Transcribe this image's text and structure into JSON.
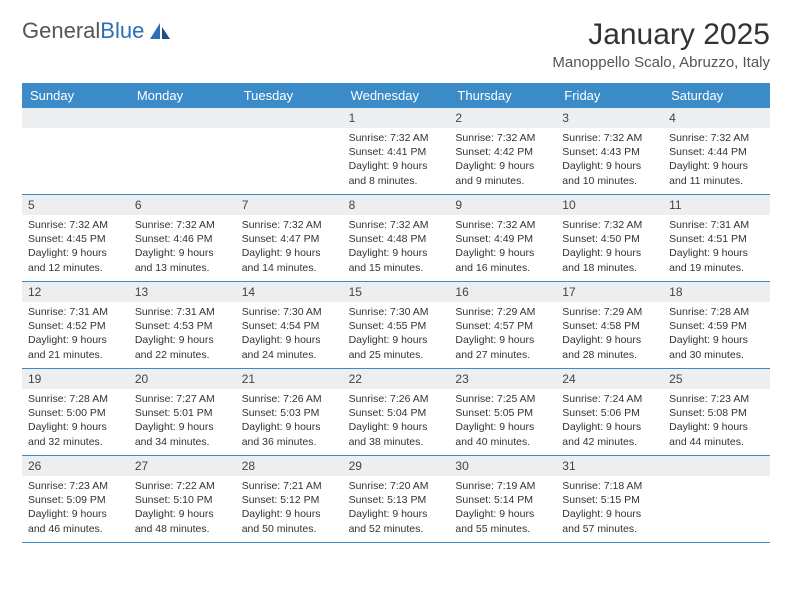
{
  "brand": {
    "part1": "General",
    "part2": "Blue"
  },
  "colors": {
    "header_bg": "#3b8bc9",
    "header_text": "#ffffff",
    "daynum_bg": "#eceef0",
    "border": "#3b8bc9",
    "logo_gray": "#555555",
    "logo_blue": "#2d6fb5"
  },
  "title": "January 2025",
  "location": "Manoppello Scalo, Abruzzo, Italy",
  "weekdays": [
    "Sunday",
    "Monday",
    "Tuesday",
    "Wednesday",
    "Thursday",
    "Friday",
    "Saturday"
  ],
  "weeks": [
    [
      {
        "n": "",
        "sr": "",
        "ss": "",
        "dl": ""
      },
      {
        "n": "",
        "sr": "",
        "ss": "",
        "dl": ""
      },
      {
        "n": "",
        "sr": "",
        "ss": "",
        "dl": ""
      },
      {
        "n": "1",
        "sr": "Sunrise: 7:32 AM",
        "ss": "Sunset: 4:41 PM",
        "dl": "Daylight: 9 hours and 8 minutes."
      },
      {
        "n": "2",
        "sr": "Sunrise: 7:32 AM",
        "ss": "Sunset: 4:42 PM",
        "dl": "Daylight: 9 hours and 9 minutes."
      },
      {
        "n": "3",
        "sr": "Sunrise: 7:32 AM",
        "ss": "Sunset: 4:43 PM",
        "dl": "Daylight: 9 hours and 10 minutes."
      },
      {
        "n": "4",
        "sr": "Sunrise: 7:32 AM",
        "ss": "Sunset: 4:44 PM",
        "dl": "Daylight: 9 hours and 11 minutes."
      }
    ],
    [
      {
        "n": "5",
        "sr": "Sunrise: 7:32 AM",
        "ss": "Sunset: 4:45 PM",
        "dl": "Daylight: 9 hours and 12 minutes."
      },
      {
        "n": "6",
        "sr": "Sunrise: 7:32 AM",
        "ss": "Sunset: 4:46 PM",
        "dl": "Daylight: 9 hours and 13 minutes."
      },
      {
        "n": "7",
        "sr": "Sunrise: 7:32 AM",
        "ss": "Sunset: 4:47 PM",
        "dl": "Daylight: 9 hours and 14 minutes."
      },
      {
        "n": "8",
        "sr": "Sunrise: 7:32 AM",
        "ss": "Sunset: 4:48 PM",
        "dl": "Daylight: 9 hours and 15 minutes."
      },
      {
        "n": "9",
        "sr": "Sunrise: 7:32 AM",
        "ss": "Sunset: 4:49 PM",
        "dl": "Daylight: 9 hours and 16 minutes."
      },
      {
        "n": "10",
        "sr": "Sunrise: 7:32 AM",
        "ss": "Sunset: 4:50 PM",
        "dl": "Daylight: 9 hours and 18 minutes."
      },
      {
        "n": "11",
        "sr": "Sunrise: 7:31 AM",
        "ss": "Sunset: 4:51 PM",
        "dl": "Daylight: 9 hours and 19 minutes."
      }
    ],
    [
      {
        "n": "12",
        "sr": "Sunrise: 7:31 AM",
        "ss": "Sunset: 4:52 PM",
        "dl": "Daylight: 9 hours and 21 minutes."
      },
      {
        "n": "13",
        "sr": "Sunrise: 7:31 AM",
        "ss": "Sunset: 4:53 PM",
        "dl": "Daylight: 9 hours and 22 minutes."
      },
      {
        "n": "14",
        "sr": "Sunrise: 7:30 AM",
        "ss": "Sunset: 4:54 PM",
        "dl": "Daylight: 9 hours and 24 minutes."
      },
      {
        "n": "15",
        "sr": "Sunrise: 7:30 AM",
        "ss": "Sunset: 4:55 PM",
        "dl": "Daylight: 9 hours and 25 minutes."
      },
      {
        "n": "16",
        "sr": "Sunrise: 7:29 AM",
        "ss": "Sunset: 4:57 PM",
        "dl": "Daylight: 9 hours and 27 minutes."
      },
      {
        "n": "17",
        "sr": "Sunrise: 7:29 AM",
        "ss": "Sunset: 4:58 PM",
        "dl": "Daylight: 9 hours and 28 minutes."
      },
      {
        "n": "18",
        "sr": "Sunrise: 7:28 AM",
        "ss": "Sunset: 4:59 PM",
        "dl": "Daylight: 9 hours and 30 minutes."
      }
    ],
    [
      {
        "n": "19",
        "sr": "Sunrise: 7:28 AM",
        "ss": "Sunset: 5:00 PM",
        "dl": "Daylight: 9 hours and 32 minutes."
      },
      {
        "n": "20",
        "sr": "Sunrise: 7:27 AM",
        "ss": "Sunset: 5:01 PM",
        "dl": "Daylight: 9 hours and 34 minutes."
      },
      {
        "n": "21",
        "sr": "Sunrise: 7:26 AM",
        "ss": "Sunset: 5:03 PM",
        "dl": "Daylight: 9 hours and 36 minutes."
      },
      {
        "n": "22",
        "sr": "Sunrise: 7:26 AM",
        "ss": "Sunset: 5:04 PM",
        "dl": "Daylight: 9 hours and 38 minutes."
      },
      {
        "n": "23",
        "sr": "Sunrise: 7:25 AM",
        "ss": "Sunset: 5:05 PM",
        "dl": "Daylight: 9 hours and 40 minutes."
      },
      {
        "n": "24",
        "sr": "Sunrise: 7:24 AM",
        "ss": "Sunset: 5:06 PM",
        "dl": "Daylight: 9 hours and 42 minutes."
      },
      {
        "n": "25",
        "sr": "Sunrise: 7:23 AM",
        "ss": "Sunset: 5:08 PM",
        "dl": "Daylight: 9 hours and 44 minutes."
      }
    ],
    [
      {
        "n": "26",
        "sr": "Sunrise: 7:23 AM",
        "ss": "Sunset: 5:09 PM",
        "dl": "Daylight: 9 hours and 46 minutes."
      },
      {
        "n": "27",
        "sr": "Sunrise: 7:22 AM",
        "ss": "Sunset: 5:10 PM",
        "dl": "Daylight: 9 hours and 48 minutes."
      },
      {
        "n": "28",
        "sr": "Sunrise: 7:21 AM",
        "ss": "Sunset: 5:12 PM",
        "dl": "Daylight: 9 hours and 50 minutes."
      },
      {
        "n": "29",
        "sr": "Sunrise: 7:20 AM",
        "ss": "Sunset: 5:13 PM",
        "dl": "Daylight: 9 hours and 52 minutes."
      },
      {
        "n": "30",
        "sr": "Sunrise: 7:19 AM",
        "ss": "Sunset: 5:14 PM",
        "dl": "Daylight: 9 hours and 55 minutes."
      },
      {
        "n": "31",
        "sr": "Sunrise: 7:18 AM",
        "ss": "Sunset: 5:15 PM",
        "dl": "Daylight: 9 hours and 57 minutes."
      },
      {
        "n": "",
        "sr": "",
        "ss": "",
        "dl": ""
      }
    ]
  ]
}
